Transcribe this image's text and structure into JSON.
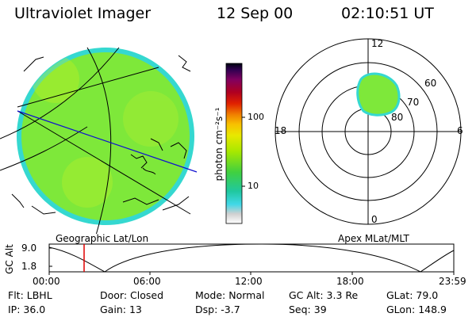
{
  "header": {
    "instrument": "Ultraviolet Imager",
    "date": "12 Sep 00",
    "time": "02:10:51 UT"
  },
  "colorbar": {
    "unit_label": "photon cm⁻²s⁻¹",
    "tick_100": "100",
    "tick_10": "10"
  },
  "polar_plot": {
    "mlt_labels": {
      "top": "12",
      "right": "6",
      "bottom": "0",
      "left": "18"
    },
    "lat_labels": [
      "60",
      "70",
      "80"
    ]
  },
  "section_labels": {
    "left": "Geographic Lat/Lon",
    "right": "Apex MLat/MLT"
  },
  "altitude_plot": {
    "ylabel": "GC Alt",
    "yticks": [
      "9.0",
      "1.8"
    ],
    "xticks": [
      "00:00",
      "06:00",
      "12:00",
      "18:00",
      "23:59"
    ],
    "marker_color": "#e00000"
  },
  "info": {
    "row1": [
      {
        "label": "Flt:",
        "value": "LBHL"
      },
      {
        "label": "Door:",
        "value": "Closed"
      },
      {
        "label": "Mode:",
        "value": "Normal"
      },
      {
        "label": "GC Alt:",
        "value": "3.3 Re"
      },
      {
        "label": "GLat:",
        "value": "79.0"
      }
    ],
    "row2": [
      {
        "label": "IP:",
        "value": "36.0"
      },
      {
        "label": "Gain:",
        "value": "13"
      },
      {
        "label": "Dsp:",
        "value": "-3.7"
      },
      {
        "label": "Seq:",
        "value": "39"
      },
      {
        "label": "GLon:",
        "value": "148.9"
      }
    ]
  },
  "colors": {
    "disk_fill": "#7ee83a",
    "disk_edge": "#35d8d0",
    "oval_fill": "#7ee83a",
    "blue_line": "#1010d0"
  }
}
